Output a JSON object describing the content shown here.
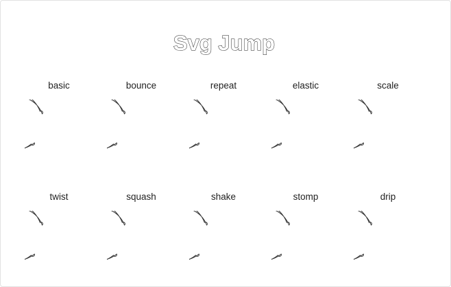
{
  "title": "Svg Jump",
  "animations": [
    {
      "label": "basic"
    },
    {
      "label": "bounce"
    },
    {
      "label": "repeat"
    },
    {
      "label": "elastic"
    },
    {
      "label": "scale"
    },
    {
      "label": "twist"
    },
    {
      "label": "squash"
    },
    {
      "label": "shake"
    },
    {
      "label": "stomp"
    },
    {
      "label": "drip"
    }
  ]
}
